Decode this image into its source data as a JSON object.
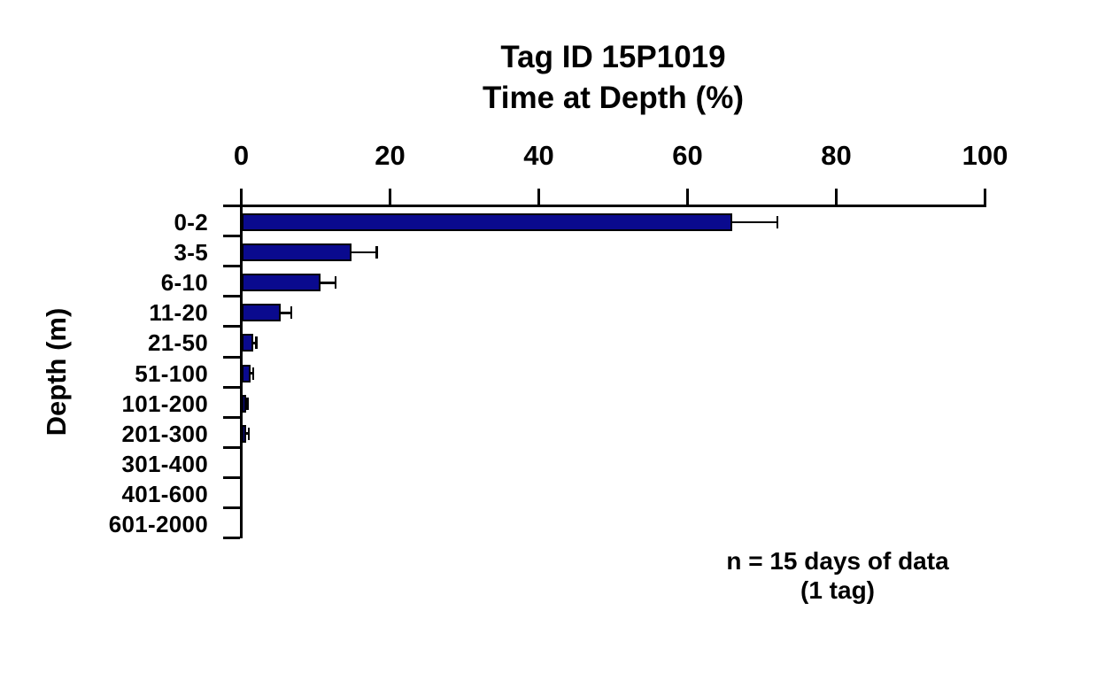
{
  "chart_data": {
    "type": "bar",
    "orientation": "horizontal",
    "title": "Tag ID 15P1019",
    "subtitle": "Time at Depth (%)",
    "xlabel": "Time at Depth (%)",
    "ylabel": "Depth (m)",
    "categories": [
      "0-2",
      "3-5",
      "6-10",
      "11-20",
      "21-50",
      "51-100",
      "101-200",
      "201-300",
      "301-400",
      "401-600",
      "601-2000"
    ],
    "values": [
      66,
      14.8,
      10.6,
      5.3,
      1.6,
      1.3,
      0.6,
      0.7,
      0,
      0,
      0
    ],
    "errors_plus": [
      6.1,
      3.4,
      2.1,
      1.4,
      0.4,
      0.3,
      0.2,
      0.3,
      0,
      0,
      0
    ],
    "xlim": [
      0,
      100
    ],
    "xticks": [
      0,
      20,
      40,
      60,
      80,
      100
    ],
    "axis_side": "top",
    "grid": false,
    "legend": "none",
    "bar_color": "#0a0a8e",
    "bar_border_color": "#000000",
    "axis_color": "#000000",
    "annotations": [
      "n = 15 days of data",
      "(1 tag)"
    ]
  }
}
